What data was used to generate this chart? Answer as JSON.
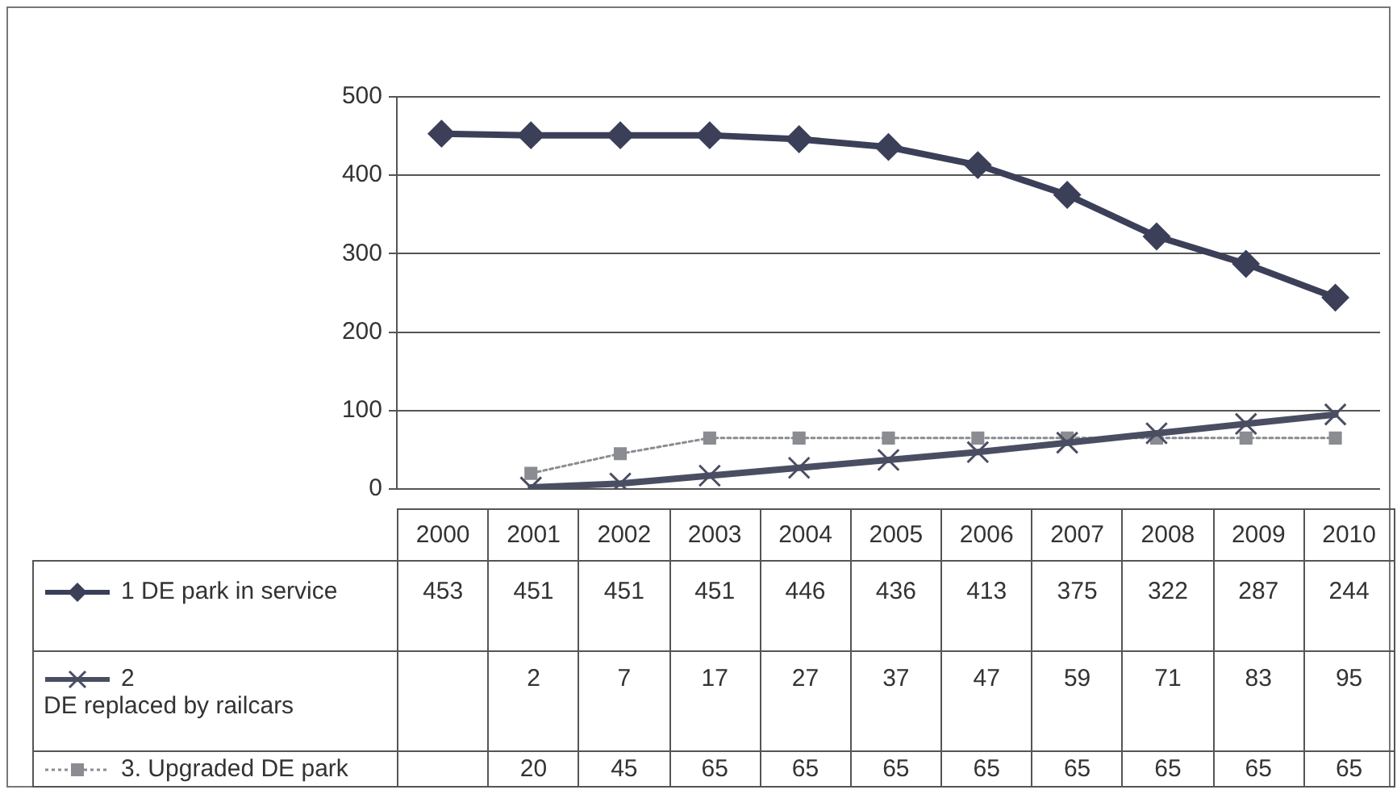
{
  "chart_data": {
    "type": "line",
    "categories": [
      "2000",
      "2001",
      "2002",
      "2003",
      "2004",
      "2005",
      "2006",
      "2007",
      "2008",
      "2009",
      "2010"
    ],
    "series": [
      {
        "name": "1 DE park in service",
        "color": "#3b3f58",
        "marker": "diamond",
        "line_style": "solid",
        "values": [
          453,
          451,
          451,
          451,
          446,
          436,
          413,
          375,
          322,
          287,
          244
        ]
      },
      {
        "name": "2\nDE replaced by railcars",
        "color": "#4a4e62",
        "marker": "cross",
        "line_style": "solid",
        "values": [
          null,
          2,
          7,
          17,
          27,
          37,
          47,
          59,
          71,
          83,
          95
        ]
      },
      {
        "name": "3. Upgraded DE park",
        "color": "#8b8c92",
        "marker": "square",
        "line_style": "dotted",
        "values": [
          null,
          20,
          45,
          65,
          65,
          65,
          65,
          65,
          65,
          65,
          65
        ]
      }
    ],
    "ylim": [
      0,
      500
    ],
    "yticks": [
      0,
      100,
      200,
      300,
      400,
      500
    ],
    "grid": "y",
    "legend": "bottom",
    "data_labels": true
  }
}
